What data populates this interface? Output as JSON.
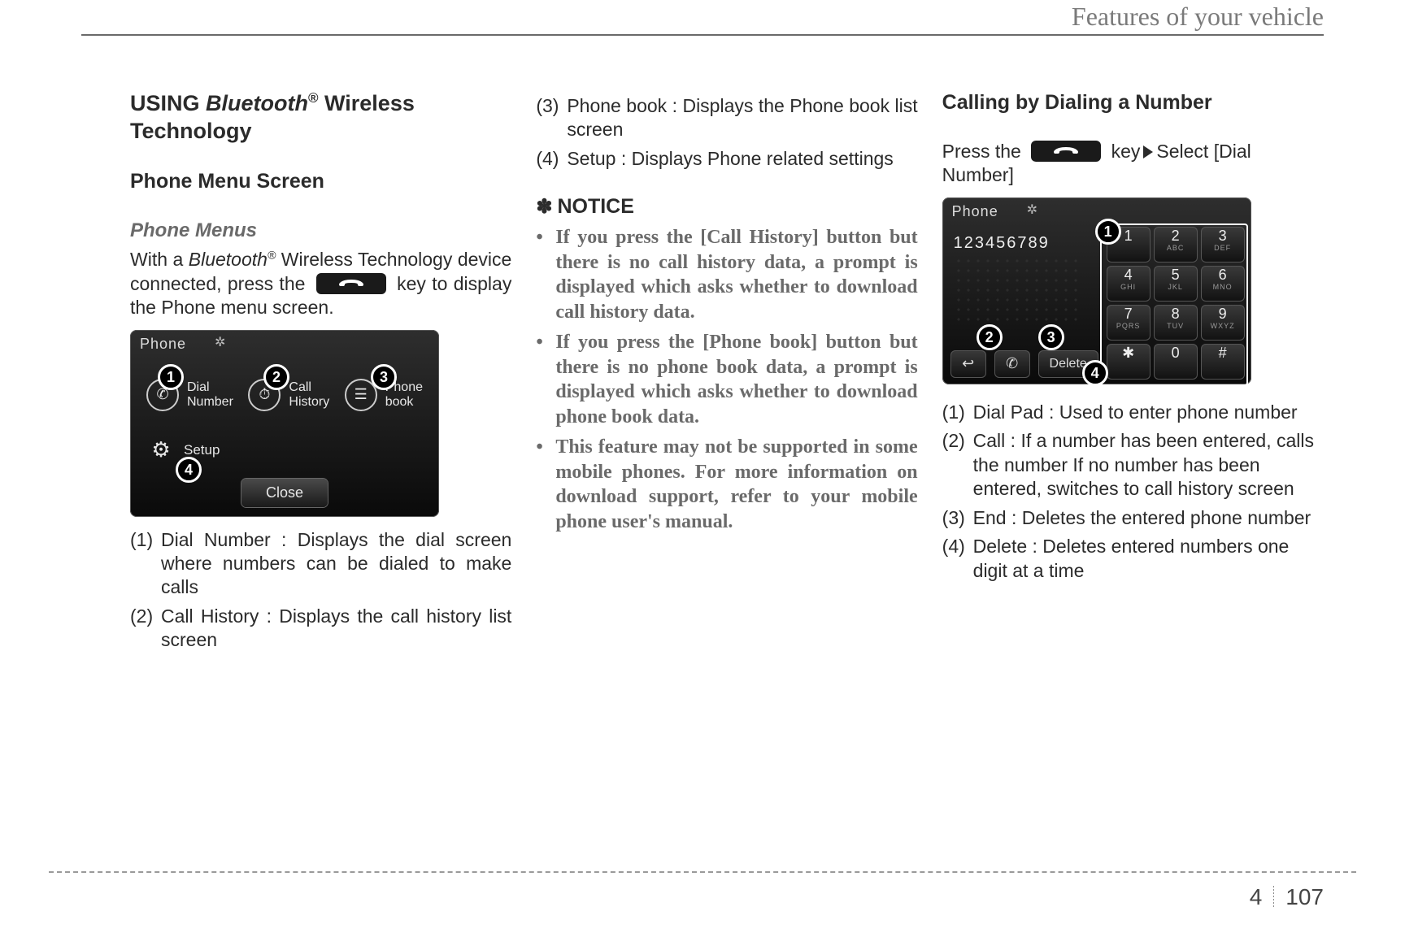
{
  "header": {
    "title": "Features of your vehicle"
  },
  "footer": {
    "chapter": "4",
    "page": "107"
  },
  "col1": {
    "h1_a": "USING ",
    "h1_b": "Bluetooth",
    "h1_reg": "®",
    "h1_c": "  Wireless Technology",
    "h2": "Phone Menu Screen",
    "h3": "Phone Menus",
    "intro_a": "With  a  ",
    "intro_b": "Bluetooth",
    "intro_reg": "®",
    "intro_c": "  Wireless Technology device connected, press the ",
    "intro_d": " key to display the Phone menu screen.",
    "shot": {
      "title": "Phone",
      "m1": "1",
      "m2": "2",
      "m3": "3",
      "m4": "4",
      "i1a": "Dial",
      "i1b": "Number",
      "i2a": "Call",
      "i2b": "History",
      "i3a": "Phone",
      "i3b": "book",
      "setup": "Setup",
      "close": "Close"
    },
    "li1_n": "(1)",
    "li1_t": "Dial Number : Displays the dial screen where numbers can be dialed to make calls",
    "li2_n": "(2)",
    "li2_t": "Call History : Displays the call history list screen"
  },
  "col2": {
    "li3_n": "(3)",
    "li3_t": "Phone book : Displays the Phone book list screen",
    "li4_n": "(4)",
    "li4_t": "Setup : Displays Phone related settings",
    "notice": "NOTICE",
    "b1": "If you press the [Call History] button but there is no call history data, a prompt is displayed which asks whether to download call history data.",
    "b2": "If you press the [Phone book] button but there is no phone book data, a prompt is displayed which asks whether to download phone book data.",
    "b3": "This feature may not be supported in some mobile phones. For more information on download support, refer to your mobile phone user's manual."
  },
  "col3": {
    "h2": "Calling by Dialing a Number",
    "intro_a": "Press the ",
    "intro_b": " key",
    "intro_c": "Select [Dial Number]",
    "shot": {
      "title": "Phone",
      "entered": "123456789",
      "m1": "1",
      "m2": "2",
      "m3": "3",
      "m4": "4",
      "keys": [
        {
          "n": "1",
          "s": ""
        },
        {
          "n": "2",
          "s": "ABC"
        },
        {
          "n": "3",
          "s": "DEF"
        },
        {
          "n": "4",
          "s": "GHI"
        },
        {
          "n": "5",
          "s": "JKL"
        },
        {
          "n": "6",
          "s": "MNO"
        },
        {
          "n": "7",
          "s": "PQRS"
        },
        {
          "n": "8",
          "s": "TUV"
        },
        {
          "n": "9",
          "s": "WXYZ"
        },
        {
          "n": "✱",
          "s": ""
        },
        {
          "n": "0",
          "s": ""
        },
        {
          "n": "#",
          "s": ""
        }
      ],
      "delete": "Delete"
    },
    "li1_n": "(1)",
    "li1_t": "Dial Pad : Used to enter phone number",
    "li2_n": "(2)",
    "li2_t": "Call : If a number has been entered, calls the number If no number has been entered, switches to call history screen",
    "li3_n": "(3)",
    "li3_t": "End : Deletes the entered phone number",
    "li4_n": "(4)",
    "li4_t": "Delete : Deletes entered numbers one digit at a time"
  }
}
